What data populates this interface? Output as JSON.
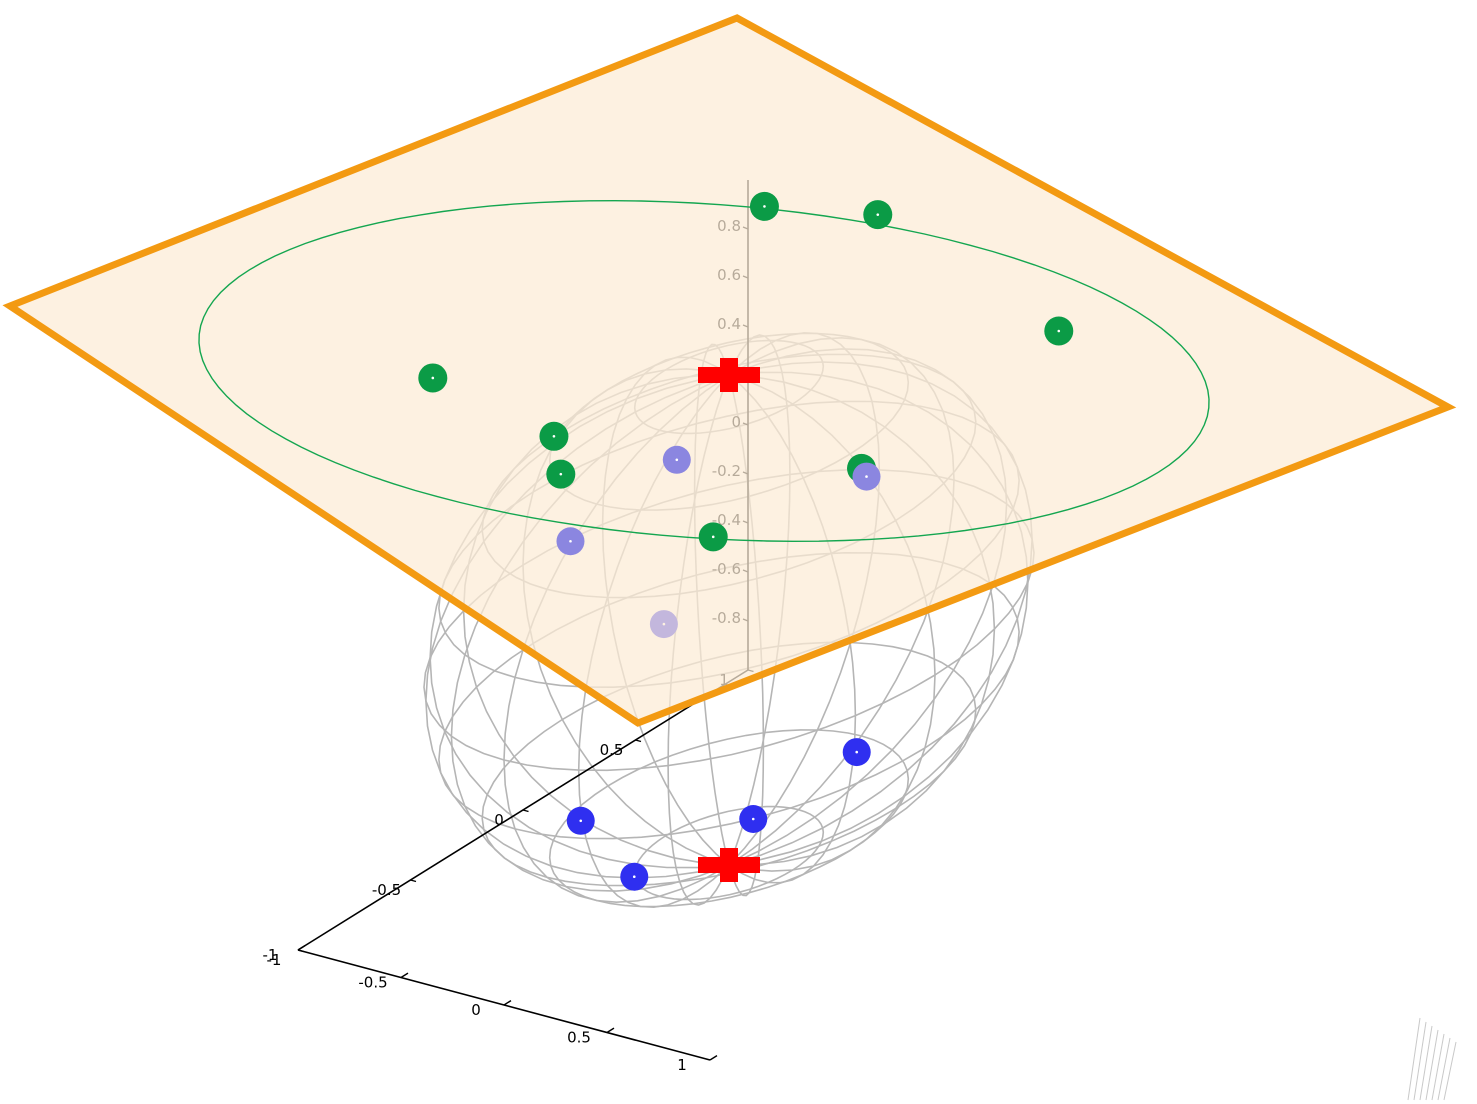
{
  "colors": {
    "plane_fill": "#fcecd6",
    "plane_edge": "#f39a12",
    "sphere_wire": "#b5b5b5",
    "axis": "#000000",
    "circle_line": "#14a650",
    "green_points": "#0b9b46",
    "blue_points": "#2f2ff0",
    "faded_points": "#8b86e0",
    "poles": "#ff0000"
  },
  "chart_data": {
    "type": "scatter",
    "title": "",
    "xlabel": "",
    "ylabel": "",
    "zlabel": "",
    "xlim": [
      -1,
      1
    ],
    "ylim": [
      -1,
      1
    ],
    "zlim": [
      -1,
      1
    ],
    "grid": false,
    "legend": "none",
    "x_ticks": [
      "-1",
      "-0.5",
      "0",
      "0.5",
      "1"
    ],
    "y_ticks": [
      "-1",
      "-0.5",
      "0",
      "0.5",
      "1"
    ],
    "z_ticks": [
      "-0.8",
      "-0.6",
      "-0.4",
      "-0.2",
      "0",
      "0.2",
      "0.4",
      "0.6",
      "0.8"
    ],
    "sphere": {
      "radius": 1,
      "center": [
        0,
        0,
        0
      ],
      "style": "wireframe"
    },
    "plane": {
      "z": 1,
      "style": "tangent plane at north pole"
    },
    "series": [
      {
        "marker": "circle",
        "color": "#0b9b46",
        "points": [
          [
            -0.8,
            0.89,
            1
          ],
          [
            -0.37,
            1.0,
            1
          ],
          [
            0.88,
            0.66,
            1
          ],
          [
            -0.99,
            -0.41,
            1
          ],
          [
            -0.26,
            -0.54,
            1
          ],
          [
            -0.03,
            -0.72,
            1
          ],
          [
            0.83,
            -0.83,
            1
          ],
          [
            0.96,
            -0.29,
            1
          ]
        ]
      },
      {
        "marker": "circle",
        "color": "#2f2ff0",
        "points": [
          [
            -0.6,
            0.26,
            -0.3
          ],
          [
            -0.25,
            -0.43,
            -0.63
          ],
          [
            0.13,
            -0.54,
            -0.71
          ],
          [
            0.5,
            -0.35,
            -0.5
          ],
          [
            0.62,
            0.0,
            -0.4
          ]
        ]
      },
      {
        "marker": "circle",
        "color": "#8b86e0",
        "points": [
          [
            -0.45,
            0.18,
            0.45
          ],
          [
            -0.42,
            -0.32,
            0.41
          ],
          [
            0.46,
            0.19,
            0.58
          ]
        ]
      },
      {
        "marker": "plus",
        "color": "#ff0000",
        "points": [
          [
            0,
            0,
            1
          ],
          [
            0,
            0,
            -1
          ]
        ]
      }
    ]
  }
}
